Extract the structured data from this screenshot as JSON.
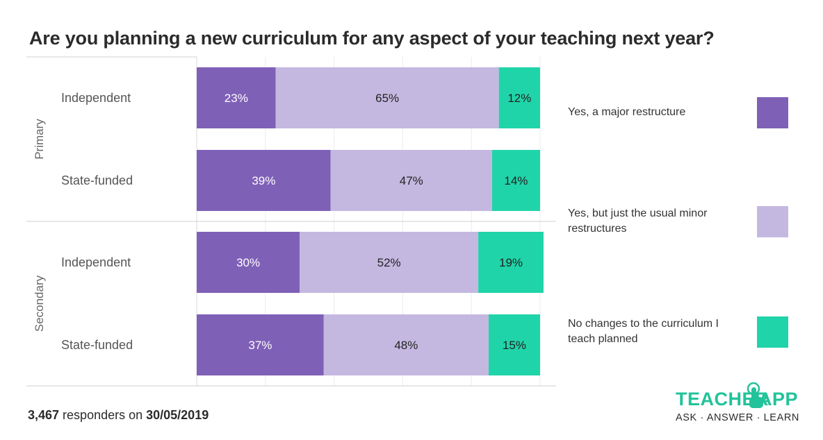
{
  "title": "Are you planning a new curriculum for any aspect of your teaching next year?",
  "footer": {
    "count": "3,467",
    "middle": " responders on ",
    "date": "30/05/2019"
  },
  "logo": {
    "word_left": "TEACHER",
    "word_right": "TAPP",
    "tagline": "ASK · ANSWER · LEARN",
    "color": "#22c39a"
  },
  "chart_data": {
    "type": "bar",
    "orientation": "horizontal",
    "stacked": true,
    "normalized_percent": true,
    "groups": [
      {
        "name": "Primary",
        "rows": [
          {
            "label": "Independent",
            "values": [
              23,
              65,
              12
            ]
          },
          {
            "label": "State-funded",
            "values": [
              39,
              47,
              14
            ]
          }
        ]
      },
      {
        "name": "Secondary",
        "rows": [
          {
            "label": "Independent",
            "values": [
              30,
              52,
              19
            ]
          },
          {
            "label": "State-funded",
            "values": [
              37,
              48,
              15
            ]
          }
        ]
      }
    ],
    "series": [
      {
        "name": "Yes, a major restructure",
        "color": "#7f60b7"
      },
      {
        "name": "Yes, but just the usual minor restructures",
        "color": "#c4b8e0"
      },
      {
        "name": "No changes to the curriculum I teach planned",
        "color": "#20d4a9"
      }
    ],
    "xlim": [
      0,
      100
    ],
    "grid": true,
    "legend_position": "right"
  }
}
